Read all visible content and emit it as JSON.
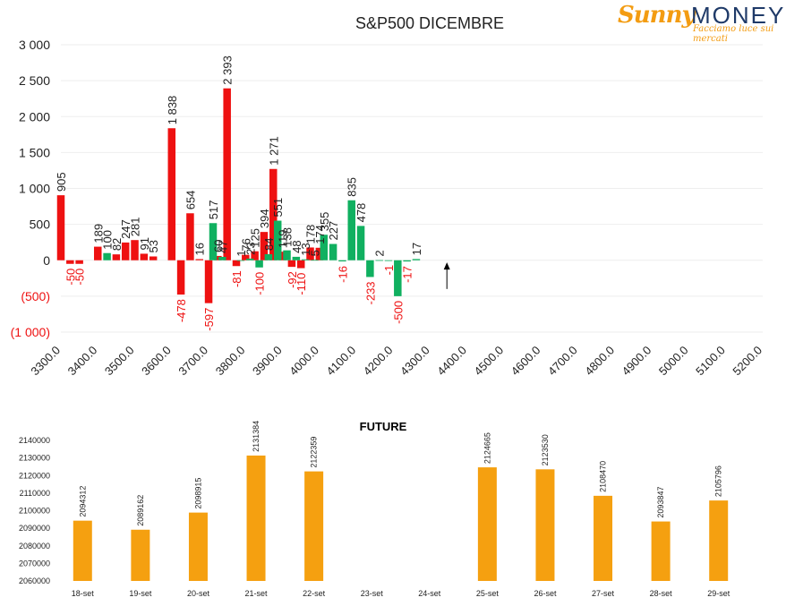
{
  "logo": {
    "brand_part1": "Sunny",
    "brand_part2": "MONEY",
    "tagline": "Facciamo luce sui mercati"
  },
  "colors": {
    "positive": "#10b060",
    "negative": "#ee1111",
    "future": "#f5a010",
    "logo_orange": "#f39c12",
    "logo_blue": "#1f3a68"
  },
  "chart_data": [
    {
      "type": "bar",
      "title": "S&P500 DICEMBRE",
      "ylim": [
        -1000,
        3000
      ],
      "y_ticks": [
        {
          "value": 3000,
          "label": "3 000"
        },
        {
          "value": 2500,
          "label": "2 500"
        },
        {
          "value": 2000,
          "label": "2 000"
        },
        {
          "value": 1500,
          "label": "1 500"
        },
        {
          "value": 1000,
          "label": "1 000"
        },
        {
          "value": 500,
          "label": "500"
        },
        {
          "value": 0,
          "label": "0"
        },
        {
          "value": -500,
          "label": "(500)"
        },
        {
          "value": -1000,
          "label": "(1 000)"
        }
      ],
      "xlim": [
        3300,
        5200
      ],
      "x_ticks": [
        "3300.0",
        "3400.0",
        "3500.0",
        "3600.0",
        "3700.0",
        "3800.0",
        "3900.0",
        "4000.0",
        "4100.0",
        "4200.0",
        "4300.0",
        "4400.0",
        "4500.0",
        "4600.0",
        "4700.0",
        "4800.0",
        "4900.0",
        "5000.0",
        "5100.0",
        "5200.0"
      ],
      "annotation": {
        "type": "arrow",
        "x": 4345,
        "from": -400,
        "to": -30
      },
      "series": [
        {
          "color": "red",
          "points": [
            {
              "x": 3300,
              "value": 905,
              "label": "905"
            },
            {
              "x": 3325,
              "value": -50,
              "label": "-50"
            },
            {
              "x": 3350,
              "value": -50,
              "label": "-50"
            },
            {
              "x": 3400,
              "value": 189,
              "label": "189"
            },
            {
              "x": 3450,
              "value": 82,
              "label": "82"
            },
            {
              "x": 3475,
              "value": 247,
              "label": "247"
            },
            {
              "x": 3500,
              "value": 281,
              "label": "281"
            },
            {
              "x": 3525,
              "value": 91,
              "label": "91"
            },
            {
              "x": 3550,
              "value": 53,
              "label": "53"
            },
            {
              "x": 3600,
              "value": 1838,
              "label": "1 838"
            },
            {
              "x": 3625,
              "value": -478,
              "label": "-478"
            },
            {
              "x": 3650,
              "value": 654,
              "label": "654"
            },
            {
              "x": 3675,
              "value": 16,
              "label": "16"
            },
            {
              "x": 3700,
              "value": -597,
              "label": "-597"
            },
            {
              "x": 3725,
              "value": 60,
              "label": "60"
            },
            {
              "x": 3750,
              "value": 2393,
              "label": "2 393"
            },
            {
              "x": 3775,
              "value": -81,
              "label": "-81"
            },
            {
              "x": 3800,
              "value": 76,
              "label": "76"
            },
            {
              "x": 3825,
              "value": 125,
              "label": "125"
            },
            {
              "x": 3850,
              "value": 394,
              "label": "394"
            },
            {
              "x": 3875,
              "value": 1271,
              "label": "1 271"
            },
            {
              "x": 3900,
              "value": 119,
              "label": "119"
            },
            {
              "x": 3925,
              "value": -92,
              "label": "-92"
            },
            {
              "x": 3950,
              "value": -110,
              "label": "-110"
            },
            {
              "x": 3975,
              "value": 178,
              "label": "178"
            },
            {
              "x": 4000,
              "value": 174,
              "label": "174"
            }
          ]
        },
        {
          "color": "green",
          "points": [
            {
              "x": 3425,
              "value": 100,
              "label": "100"
            },
            {
              "x": 3712,
              "value": 517,
              "label": "517"
            },
            {
              "x": 3737,
              "value": 47,
              "label": "47"
            },
            {
              "x": 3787,
              "value": 1,
              "label": "1"
            },
            {
              "x": 3812,
              "value": 23,
              "label": "23"
            },
            {
              "x": 3837,
              "value": -100,
              "label": "-100"
            },
            {
              "x": 3862,
              "value": 84,
              "label": "84"
            },
            {
              "x": 3887,
              "value": 551,
              "label": "551"
            },
            {
              "x": 3912,
              "value": 138,
              "label": "138"
            },
            {
              "x": 3937,
              "value": 48,
              "label": "48"
            },
            {
              "x": 3962,
              "value": 13,
              "label": "13"
            },
            {
              "x": 3987,
              "value": 5,
              "label": "5"
            },
            {
              "x": 4012,
              "value": 355,
              "label": "355"
            },
            {
              "x": 4037,
              "value": 227,
              "label": "227"
            },
            {
              "x": 4062,
              "value": -16,
              "label": "-16"
            },
            {
              "x": 4087,
              "value": 835,
              "label": "835"
            },
            {
              "x": 4112,
              "value": 478,
              "label": "478"
            },
            {
              "x": 4137,
              "value": -233,
              "label": "-233"
            },
            {
              "x": 4162,
              "value": 2,
              "label": "2"
            },
            {
              "x": 4187,
              "value": -1,
              "label": "-1"
            },
            {
              "x": 4212,
              "value": -500,
              "label": "-500"
            },
            {
              "x": 4237,
              "value": -17,
              "label": "-17"
            },
            {
              "x": 4262,
              "value": 17,
              "label": "17"
            }
          ]
        }
      ]
    },
    {
      "type": "bar",
      "title": "FUTURE",
      "ylim": [
        2060000,
        2140000
      ],
      "y_ticks": [
        2060000,
        2070000,
        2080000,
        2090000,
        2100000,
        2110000,
        2120000,
        2130000,
        2140000
      ],
      "categories": [
        "18-set",
        "19-set",
        "20-set",
        "21-set",
        "22-set",
        "23-set",
        "24-set",
        "25-set",
        "26-set",
        "27-set",
        "28-set",
        "29-set"
      ],
      "values": [
        2094312,
        2089162,
        2098915,
        2131384,
        2122359,
        null,
        null,
        2124665,
        2123530,
        2108470,
        2093847,
        2105796
      ]
    }
  ]
}
